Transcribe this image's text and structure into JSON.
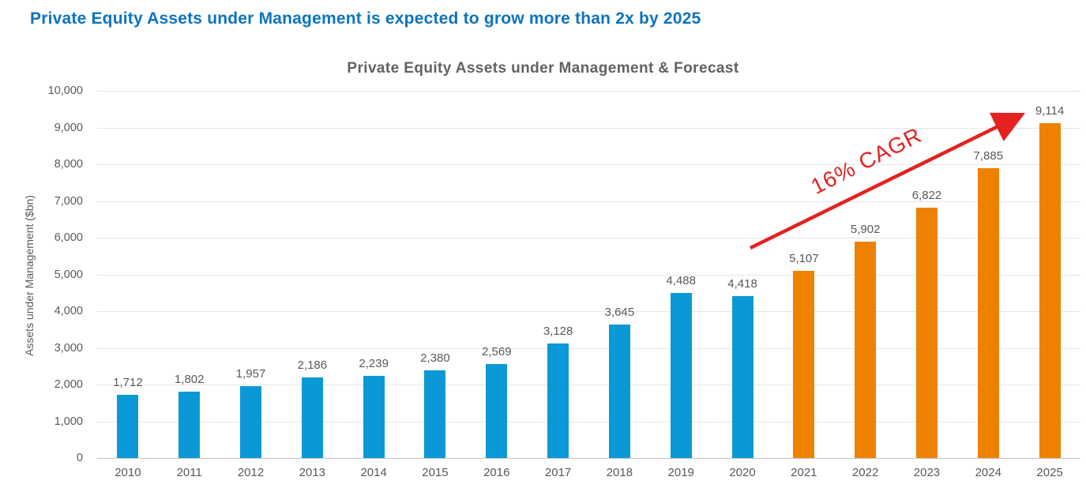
{
  "page": {
    "headline": "Private Equity Assets under Management is expected to grow more than 2x by 2025"
  },
  "chart_data": {
    "type": "bar",
    "title": "Private Equity Assets under Management & Forecast",
    "xlabel": "",
    "ylabel": "Assets under Management ($bn)",
    "categories": [
      "2010",
      "2011",
      "2012",
      "2013",
      "2014",
      "2015",
      "2016",
      "2017",
      "2018",
      "2019",
      "2020",
      "2021",
      "2022",
      "2023",
      "2024",
      "2025"
    ],
    "values": [
      1712,
      1802,
      1957,
      2186,
      2239,
      2380,
      2569,
      3128,
      3645,
      4488,
      4418,
      5107,
      5902,
      6822,
      7885,
      9114
    ],
    "value_labels": [
      "1,712",
      "1,802",
      "1,957",
      "2,186",
      "2,239",
      "2,380",
      "2,569",
      "3,128",
      "3,645",
      "4,488",
      "4,418",
      "5,107",
      "5,902",
      "6,822",
      "7,885",
      "9,114"
    ],
    "ytick_labels": [
      "0",
      "1,000",
      "2,000",
      "3,000",
      "4,000",
      "5,000",
      "6,000",
      "7,000",
      "8,000",
      "9,000",
      "10,000"
    ],
    "ylim": [
      0,
      10000
    ],
    "ytick_step": 1000,
    "grid": true,
    "legend_position": "none",
    "series_colors": {
      "historical": "#0a99d6",
      "forecast": "#ee8100"
    },
    "forecast_from_index": 11,
    "annotation": {
      "text": "16% CAGR",
      "color": "#e32221"
    }
  },
  "colors": {
    "headline": "#0b74bd",
    "chart_title": "#616161",
    "axis_text": "#595959"
  }
}
